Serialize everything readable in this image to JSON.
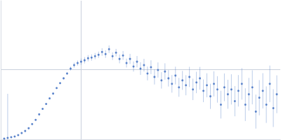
{
  "chart_data": {
    "type": "scatter",
    "color": "#3b6cc0",
    "marker": "circle",
    "grid": true,
    "tick_labels": false,
    "xlim": [
      0,
      6
    ],
    "ylim": [
      0,
      2.2
    ],
    "xticks": [
      1.725
    ],
    "yticks": [
      1.104
    ],
    "x": [
      0.075,
      0.15,
      0.225,
      0.3,
      0.375,
      0.45,
      0.525,
      0.6,
      0.675,
      0.75,
      0.825,
      0.9,
      0.975,
      1.05,
      1.125,
      1.2,
      1.275,
      1.35,
      1.425,
      1.5,
      1.575,
      1.65,
      1.725,
      1.8,
      1.875,
      1.95,
      2.025,
      2.1,
      2.175,
      2.25,
      2.325,
      2.4,
      2.475,
      2.55,
      2.625,
      2.7,
      2.775,
      2.85,
      2.925,
      3.0,
      3.075,
      3.15,
      3.225,
      3.3,
      3.375,
      3.45,
      3.525,
      3.6,
      3.675,
      3.75,
      3.825,
      3.9,
      3.975,
      4.05,
      4.125,
      4.2,
      4.275,
      4.35,
      4.425,
      4.5,
      4.575,
      4.65,
      4.725,
      4.8,
      4.875,
      4.95,
      5.025,
      5.1,
      5.175,
      5.25,
      5.325,
      5.4,
      5.475,
      5.55,
      5.625,
      5.7,
      5.775,
      5.85,
      5.925
    ],
    "values": [
      0.011,
      0.022,
      0.033,
      0.044,
      0.066,
      0.099,
      0.132,
      0.176,
      0.242,
      0.308,
      0.396,
      0.484,
      0.561,
      0.649,
      0.726,
      0.814,
      0.891,
      0.968,
      1.045,
      1.122,
      1.177,
      1.21,
      1.232,
      1.254,
      1.287,
      1.298,
      1.32,
      1.342,
      1.386,
      1.353,
      1.43,
      1.32,
      1.375,
      1.276,
      1.331,
      1.21,
      1.276,
      1.155,
      1.232,
      1.122,
      1.177,
      1.045,
      1.144,
      0.99,
      1.1,
      0.935,
      1.076,
      0.968,
      0.88,
      1.012,
      0.825,
      0.935,
      0.858,
      0.99,
      0.792,
      0.902,
      0.968,
      0.77,
      0.858,
      0.682,
      0.88,
      0.792,
      0.55,
      0.825,
      0.715,
      0.792,
      0.605,
      0.77,
      0.88,
      0.55,
      0.715,
      0.825,
      0.44,
      0.66,
      0.77,
      0.55,
      0.88,
      0.495,
      0.715
    ],
    "errors": [
      0.01,
      0.7,
      0.01,
      0.01,
      0.01,
      0.01,
      0.01,
      0.01,
      0.01,
      0.01,
      0.01,
      0.01,
      0.01,
      0.01,
      0.01,
      0.01,
      0.01,
      0.01,
      0.02,
      0.03,
      0.04,
      0.04,
      0.05,
      0.05,
      0.05,
      0.05,
      0.05,
      0.05,
      0.06,
      0.06,
      0.06,
      0.06,
      0.06,
      0.07,
      0.07,
      0.07,
      0.08,
      0.08,
      0.09,
      0.1,
      0.1,
      0.11,
      0.11,
      0.12,
      0.12,
      0.13,
      0.13,
      0.13,
      0.14,
      0.14,
      0.15,
      0.15,
      0.16,
      0.16,
      0.17,
      0.17,
      0.18,
      0.18,
      0.19,
      0.2,
      0.2,
      0.21,
      0.22,
      0.22,
      0.23,
      0.24,
      0.24,
      0.25,
      0.25,
      0.26,
      0.26,
      0.27,
      0.27,
      0.28,
      0.28,
      0.29,
      0.29,
      0.3,
      0.3
    ]
  }
}
